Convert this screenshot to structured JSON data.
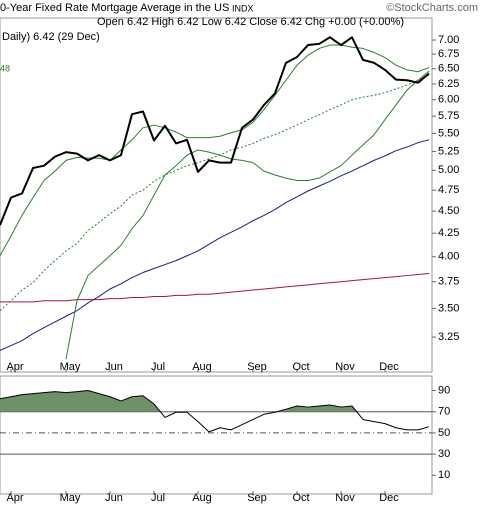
{
  "chart_data": [
    {
      "type": "line",
      "title": "0-Year Fixed Rate Mortgage Average in the US",
      "exchange": "INDX",
      "source": "©StockCharts.com",
      "quote": "Open 6.42 High 6.42 Low 6.42 Close 6.42 Chg +0.00 (+0.00%)",
      "legend_text": "Daily) 6.42 (29 Dec)",
      "side_label": "48",
      "log_scale": true,
      "categories": [
        null,
        "Apr",
        null,
        null,
        null,
        null,
        "May",
        null,
        null,
        null,
        "Jun",
        null,
        null,
        null,
        "Jul",
        null,
        null,
        null,
        "Aug",
        null,
        null,
        null,
        null,
        "Sep",
        null,
        null,
        null,
        "Oct",
        null,
        null,
        null,
        "Nov",
        null,
        null,
        null,
        "Dec",
        null,
        null,
        null,
        null
      ],
      "ylim": [
        2.97,
        7.41
      ],
      "yticks": [
        3.25,
        {
          "value": 3.5,
          "label": "3.50"
        },
        3.75,
        {
          "value": 4,
          "label": "4.00"
        },
        4.25,
        {
          "value": 4.5,
          "label": "4.50"
        },
        4.75,
        {
          "value": 5,
          "label": "5.00"
        },
        5.25,
        {
          "value": 5.5,
          "label": "5.50"
        },
        5.75,
        {
          "value": 6,
          "label": "6.00"
        },
        6.25,
        {
          "value": 6.5,
          "label": "6.50"
        },
        6.75,
        {
          "value": 7,
          "label": "7.00"
        }
      ],
      "series": [
        {
          "color": "#b0103a",
          "width": 1,
          "dash": "solid",
          "values": [
            3.56,
            3.56,
            3.56,
            3.56,
            3.57,
            3.57,
            3.57,
            3.58,
            3.58,
            3.58,
            3.59,
            3.59,
            3.6,
            3.6,
            3.61,
            3.61,
            3.62,
            3.62,
            3.63,
            3.63,
            3.64,
            3.65,
            3.66,
            3.67,
            3.68,
            3.69,
            3.7,
            3.71,
            3.72,
            3.73,
            3.74,
            3.75,
            3.76,
            3.77,
            3.78,
            3.79,
            3.8,
            3.81,
            3.82,
            3.83
          ]
        },
        {
          "color": "#1a1a8c",
          "width": 1,
          "dash": "solid",
          "values": [
            3.14,
            3.18,
            3.22,
            3.28,
            3.33,
            3.38,
            3.43,
            3.48,
            3.55,
            3.61,
            3.68,
            3.73,
            3.79,
            3.84,
            3.88,
            3.92,
            3.96,
            4.01,
            4.06,
            4.13,
            4.2,
            4.26,
            4.32,
            4.39,
            4.45,
            4.52,
            4.6,
            4.67,
            4.74,
            4.8,
            4.86,
            4.93,
            4.99,
            5.06,
            5.13,
            5.19,
            5.26,
            5.31,
            5.37,
            5.41
          ]
        },
        {
          "color": "#2e7d32",
          "width": 1,
          "dash": "dotted",
          "values": [
            3.48,
            3.57,
            3.67,
            3.74,
            3.86,
            3.96,
            4.06,
            4.14,
            4.28,
            4.37,
            4.47,
            4.56,
            4.69,
            4.75,
            4.86,
            4.94,
            5.0,
            5.06,
            5.1,
            5.15,
            5.2,
            5.27,
            5.31,
            5.36,
            5.43,
            5.48,
            5.55,
            5.62,
            5.7,
            5.77,
            5.85,
            5.92,
            6.0,
            6.04,
            6.07,
            6.11,
            6.17,
            6.23,
            6.31,
            6.4
          ]
        },
        {
          "color": "#2e7d32",
          "width": 1,
          "dash": "solid",
          "values": [
            4.01,
            4.22,
            4.45,
            4.66,
            4.87,
            4.99,
            5.13,
            5.17,
            5.16,
            5.16,
            5.13,
            5.27,
            5.41,
            5.58,
            5.62,
            5.58,
            5.52,
            5.44,
            5.44,
            5.44,
            5.46,
            5.51,
            5.55,
            5.66,
            5.85,
            6.07,
            6.31,
            6.56,
            6.73,
            6.85,
            6.91,
            6.91,
            6.87,
            6.85,
            6.78,
            6.69,
            6.56,
            6.48,
            6.45,
            6.52
          ]
        },
        {
          "color": "#2e7d32",
          "width": 1,
          "dash": "solid",
          "values": [
            null,
            null,
            null,
            null,
            null,
            null,
            3.07,
            3.57,
            3.81,
            3.91,
            4.01,
            4.12,
            4.3,
            4.45,
            4.69,
            4.94,
            5.06,
            5.2,
            5.27,
            5.24,
            5.2,
            5.15,
            5.13,
            5.1,
            4.99,
            4.94,
            4.9,
            4.87,
            4.87,
            4.9,
            4.98,
            5.06,
            5.2,
            5.34,
            5.48,
            5.7,
            5.92,
            6.15,
            6.31,
            6.46
          ]
        },
        {
          "color": "#000000",
          "width": 2,
          "dash": "solid",
          "values": [
            4.34,
            4.66,
            4.71,
            5.03,
            5.06,
            5.18,
            5.24,
            5.22,
            5.13,
            5.2,
            5.13,
            5.2,
            5.78,
            5.82,
            5.4,
            5.61,
            5.36,
            5.41,
            4.98,
            5.13,
            5.1,
            5.1,
            5.58,
            5.7,
            5.92,
            6.1,
            6.6,
            6.7,
            6.91,
            6.93,
            7.05,
            6.91,
            7.05,
            6.65,
            6.6,
            6.48,
            6.32,
            6.31,
            6.27,
            6.42
          ]
        }
      ]
    },
    {
      "type": "line",
      "categories": [
        null,
        "Apr",
        null,
        null,
        null,
        null,
        "May",
        null,
        null,
        null,
        "Jun",
        null,
        null,
        null,
        "Jul",
        null,
        null,
        null,
        "Aug",
        null,
        null,
        null,
        null,
        "Sep",
        null,
        null,
        null,
        "Oct",
        null,
        null,
        null,
        "Nov",
        null,
        null,
        null,
        "Dec",
        null,
        null,
        null,
        null
      ],
      "ylim": [
        -7.6,
        103.7
      ],
      "yticks": [
        10,
        30,
        50,
        70,
        90
      ],
      "levels": [
        {
          "value": 70,
          "style": "solid"
        },
        {
          "value": 50,
          "style": "dashdot"
        },
        {
          "value": 30,
          "style": "solid"
        }
      ],
      "fill_above": 70,
      "fill_color": "#6f9167",
      "series": [
        {
          "color": "#000000",
          "width": 1,
          "dash": "solid",
          "values": [
            82.2,
            84.1,
            86.1,
            87.1,
            88.0,
            89.0,
            88.0,
            89.0,
            90.0,
            87.1,
            84.1,
            80.2,
            84.1,
            85.1,
            77.3,
            64.6,
            69.5,
            69.5,
            60.7,
            51.0,
            54.9,
            52.9,
            57.8,
            62.7,
            67.6,
            69.5,
            72.4,
            75.4,
            74.4,
            75.4,
            76.3,
            74.4,
            75.4,
            62.7,
            60.7,
            58.8,
            54.9,
            52.9,
            52.9,
            55.9
          ]
        }
      ]
    }
  ]
}
